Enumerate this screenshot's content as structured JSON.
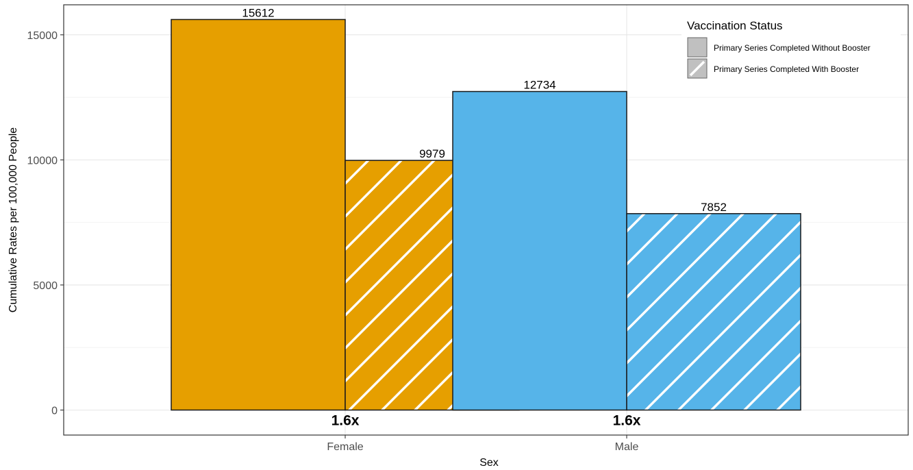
{
  "chart_data": {
    "type": "bar",
    "xlabel": "Sex",
    "ylabel": "Cumulative Rates per 100,000 People",
    "categories": [
      "Female",
      "Male"
    ],
    "ylim": [
      -1000,
      16200
    ],
    "yticks": [
      0,
      5000,
      10000,
      15000
    ],
    "grid": true,
    "legend": {
      "title": "Vaccination Status",
      "position": "top-right",
      "items": [
        {
          "label": "Primary Series Completed Without Booster",
          "pattern": "solid"
        },
        {
          "label": "Primary Series Completed With Booster",
          "pattern": "hatched"
        }
      ]
    },
    "series": [
      {
        "name": "Primary Series Completed Without Booster",
        "values": [
          15612,
          12734
        ]
      },
      {
        "name": "Primary Series Completed With Booster",
        "values": [
          9979,
          7852
        ]
      }
    ],
    "category_colors": [
      "#E69F00",
      "#56B4E9"
    ],
    "ratio_labels": [
      "1.6x",
      "1.6x"
    ]
  }
}
